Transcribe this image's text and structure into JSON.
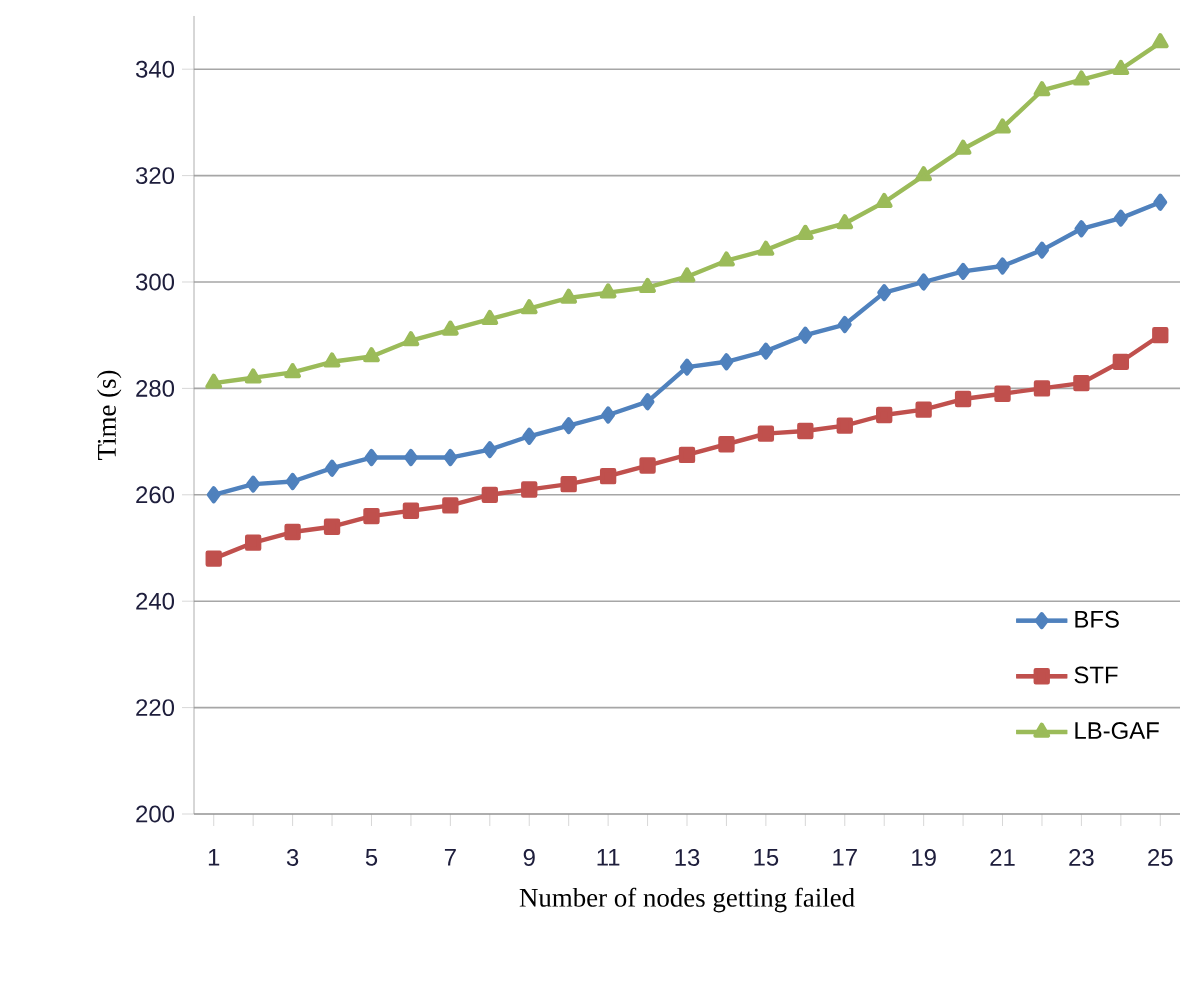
{
  "chart_data": {
    "type": "line",
    "xlabel": "Number of nodes getting failed",
    "ylabel": "Time (s)",
    "categories": [
      "1",
      null,
      "3",
      null,
      "5",
      null,
      "7",
      null,
      "9",
      null,
      "11",
      null,
      "13",
      null,
      "15",
      null,
      "17",
      null,
      "19",
      null,
      "21",
      null,
      "23",
      null,
      "25"
    ],
    "series": [
      {
        "name": "BFS",
        "color": "#4f81bd",
        "marker": "diamond",
        "values": [
          260,
          262,
          262.5,
          265,
          267,
          267,
          267,
          268.5,
          271,
          273,
          275,
          277.5,
          284,
          285,
          287,
          290,
          292,
          298,
          300,
          302,
          303,
          306,
          310,
          312,
          315
        ]
      },
      {
        "name": "STF",
        "color": "#c0504d",
        "marker": "square",
        "values": [
          248,
          251,
          253,
          254,
          256,
          257,
          258,
          260,
          261,
          262,
          263.5,
          265.5,
          267.5,
          269.5,
          271.5,
          272,
          273,
          275,
          276,
          278,
          279,
          280,
          281,
          285,
          290
        ]
      },
      {
        "name": "LB-GAF",
        "color": "#9bbb59",
        "marker": "triangle",
        "values": [
          281,
          282,
          283,
          285,
          286,
          289,
          291,
          293,
          295,
          297,
          298,
          299,
          301,
          304,
          306,
          309,
          311,
          315,
          320,
          325,
          329,
          336,
          338,
          340,
          345
        ]
      }
    ],
    "ylim": [
      200,
      350
    ],
    "yticks": [
      200,
      220,
      240,
      260,
      280,
      300,
      320,
      340
    ],
    "grid": "y",
    "legend": "bottom right"
  }
}
